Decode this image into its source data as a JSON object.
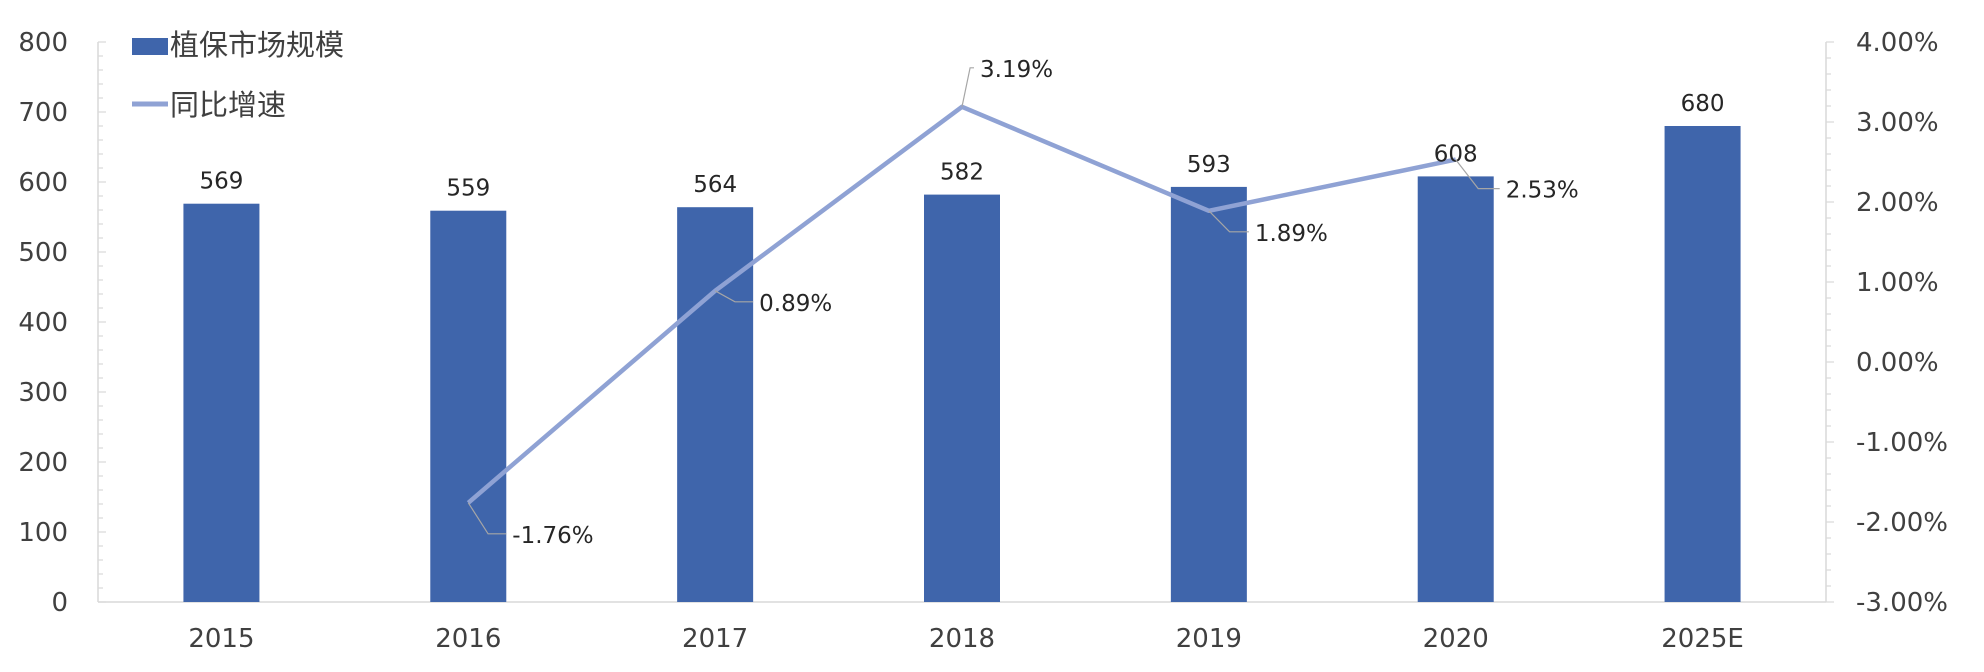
{
  "chart_data": {
    "type": "bar",
    "categories": [
      "2015",
      "2016",
      "2017",
      "2018",
      "2019",
      "2020",
      "2025E"
    ],
    "series": [
      {
        "name": "植保市场规模",
        "type": "bar",
        "axis": "left",
        "color": "#3f65ab",
        "values": [
          569,
          559,
          564,
          582,
          593,
          608,
          680
        ],
        "labels": [
          "569",
          "559",
          "564",
          "582",
          "593",
          "608",
          "680"
        ]
      },
      {
        "name": "同比增速",
        "type": "line",
        "axis": "right",
        "color": "#8fa2d4",
        "values": [
          null,
          -1.76,
          0.89,
          3.19,
          1.89,
          2.53,
          null
        ],
        "labels": [
          "",
          "-1.76%",
          "0.89%",
          "3.19%",
          "1.89%",
          "2.53%",
          ""
        ]
      }
    ],
    "ylim": [
      0,
      800
    ],
    "yticks": [
      "0",
      "100",
      "200",
      "300",
      "400",
      "500",
      "600",
      "700",
      "800"
    ],
    "y2lim": [
      -3,
      4
    ],
    "y2ticks": [
      "-3.00%",
      "-2.00%",
      "-1.00%",
      "0.00%",
      "1.00%",
      "2.00%",
      "3.00%",
      "4.00%"
    ],
    "legend_position": "top-left",
    "grid": false
  }
}
